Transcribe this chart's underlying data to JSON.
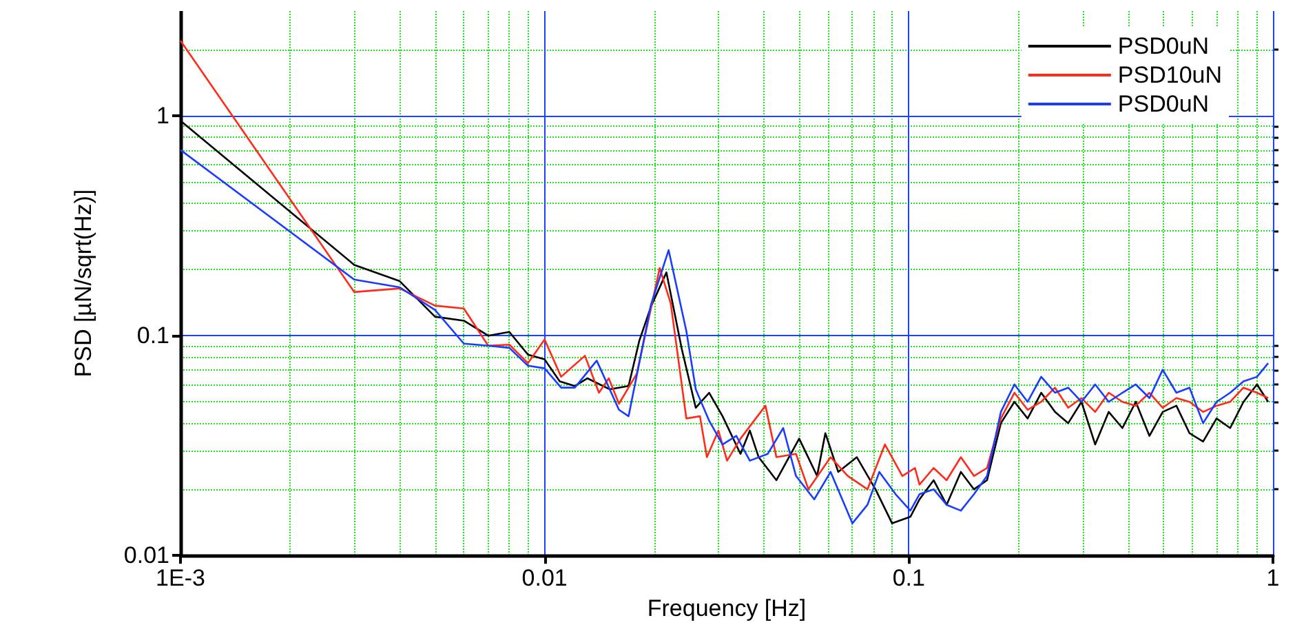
{
  "chart_data": {
    "type": "line",
    "xlabel": "Frequency [Hz]",
    "ylabel": "PSD [µN/sqrt(Hz)]",
    "log": "xy",
    "grid": true,
    "legend": "top right",
    "marker": "none",
    "line_style": "solid",
    "xlim": [
      0.001,
      1
    ],
    "ylim": [
      0.01,
      3
    ],
    "xticks": [
      {
        "value": 0.001,
        "label": "1E-3"
      },
      {
        "value": 0.002,
        "label": null
      },
      {
        "value": 0.003,
        "label": null
      },
      {
        "value": 0.004,
        "label": null
      },
      {
        "value": 0.005,
        "label": null
      },
      {
        "value": 0.006,
        "label": null
      },
      {
        "value": 0.007,
        "label": null
      },
      {
        "value": 0.008,
        "label": null
      },
      {
        "value": 0.009,
        "label": null
      },
      0.01,
      {
        "value": 0.02,
        "label": null
      },
      {
        "value": 0.03,
        "label": null
      },
      {
        "value": 0.04,
        "label": null
      },
      {
        "value": 0.05,
        "label": null
      },
      {
        "value": 0.06,
        "label": null
      },
      {
        "value": 0.07,
        "label": null
      },
      {
        "value": 0.08,
        "label": null
      },
      {
        "value": 0.09,
        "label": null
      },
      0.1,
      {
        "value": 0.2,
        "label": null
      },
      {
        "value": 0.3,
        "label": null
      },
      {
        "value": 0.4,
        "label": null
      },
      {
        "value": 0.5,
        "label": null
      },
      {
        "value": 0.6,
        "label": null
      },
      {
        "value": 0.7,
        "label": null
      },
      {
        "value": 0.8,
        "label": null
      },
      {
        "value": 0.9,
        "label": null
      },
      1
    ],
    "yticks": [
      0.01,
      {
        "value": 0.02,
        "label": null
      },
      {
        "value": 0.03,
        "label": null
      },
      {
        "value": 0.04,
        "label": null
      },
      {
        "value": 0.05,
        "label": null
      },
      {
        "value": 0.06,
        "label": null
      },
      {
        "value": 0.07,
        "label": null
      },
      {
        "value": 0.08,
        "label": null
      },
      {
        "value": 0.09,
        "label": null
      },
      0.1,
      {
        "value": 0.2,
        "label": null
      },
      {
        "value": 0.3,
        "label": null
      },
      {
        "value": 0.4,
        "label": null
      },
      {
        "value": 0.5,
        "label": null
      },
      {
        "value": 0.6,
        "label": null
      },
      {
        "value": 0.7,
        "label": null
      },
      {
        "value": 0.8,
        "label": null
      },
      {
        "value": 0.9,
        "label": null
      },
      1,
      {
        "value": 2,
        "label": null
      }
    ],
    "series": [
      {
        "name": "PSD0uN",
        "color": "#000000",
        "x": [
          0.001,
          0.003,
          0.004,
          0.005,
          0.006,
          0.007,
          0.008,
          0.009,
          0.01,
          0.011,
          0.0121,
          0.0131,
          0.0151,
          0.017,
          0.0182,
          0.0196,
          0.0216,
          0.0238,
          0.026,
          0.0283,
          0.0308,
          0.0345,
          0.0366,
          0.0387,
          0.0433,
          0.05,
          0.056,
          0.059,
          0.064,
          0.072,
          0.081,
          0.09,
          0.101,
          0.107,
          0.117,
          0.127,
          0.139,
          0.151,
          0.164,
          0.179,
          0.195,
          0.212,
          0.231,
          0.252,
          0.274,
          0.298,
          0.325,
          0.354,
          0.386,
          0.42,
          0.458,
          0.498,
          0.543,
          0.59,
          0.643,
          0.7,
          0.763,
          0.83,
          0.904,
          0.97
        ],
        "values": [
          0.95,
          0.21,
          0.177,
          0.122,
          0.117,
          0.1,
          0.104,
          0.082,
          0.078,
          0.062,
          0.059,
          0.064,
          0.057,
          0.059,
          0.095,
          0.136,
          0.194,
          0.087,
          0.047,
          0.055,
          0.043,
          0.029,
          0.037,
          0.028,
          0.022,
          0.034,
          0.023,
          0.036,
          0.024,
          0.028,
          0.02,
          0.014,
          0.015,
          0.018,
          0.022,
          0.017,
          0.024,
          0.02,
          0.022,
          0.04,
          0.05,
          0.042,
          0.055,
          0.045,
          0.04,
          0.05,
          0.032,
          0.045,
          0.038,
          0.05,
          0.035,
          0.045,
          0.048,
          0.036,
          0.033,
          0.042,
          0.038,
          0.05,
          0.06,
          0.05
        ]
      },
      {
        "name": "PSD10uN",
        "color": "#ff2a1a",
        "x": [
          0.001,
          0.003,
          0.004,
          0.005,
          0.006,
          0.007,
          0.008,
          0.009,
          0.01,
          0.0111,
          0.0129,
          0.0141,
          0.015,
          0.016,
          0.0179,
          0.0207,
          0.0222,
          0.0245,
          0.0267,
          0.0279,
          0.03,
          0.0317,
          0.0345,
          0.0404,
          0.0433,
          0.049,
          0.053,
          0.061,
          0.068,
          0.077,
          0.086,
          0.096,
          0.104,
          0.107,
          0.117,
          0.127,
          0.139,
          0.151,
          0.164,
          0.179,
          0.195,
          0.212,
          0.231,
          0.252,
          0.274,
          0.298,
          0.325,
          0.354,
          0.386,
          0.42,
          0.458,
          0.498,
          0.543,
          0.59,
          0.643,
          0.7,
          0.763,
          0.83,
          0.904,
          0.97
        ],
        "values": [
          2.2,
          0.158,
          0.164,
          0.137,
          0.133,
          0.09,
          0.091,
          0.075,
          0.096,
          0.065,
          0.081,
          0.055,
          0.064,
          0.049,
          0.067,
          0.203,
          0.14,
          0.042,
          0.043,
          0.028,
          0.037,
          0.027,
          0.034,
          0.048,
          0.028,
          0.029,
          0.02,
          0.028,
          0.023,
          0.02,
          0.032,
          0.023,
          0.025,
          0.021,
          0.025,
          0.022,
          0.028,
          0.023,
          0.025,
          0.042,
          0.055,
          0.046,
          0.05,
          0.058,
          0.047,
          0.052,
          0.045,
          0.055,
          0.05,
          0.048,
          0.055,
          0.047,
          0.052,
          0.05,
          0.045,
          0.048,
          0.05,
          0.058,
          0.055,
          0.052
        ]
      },
      {
        "name": "PSD0uN",
        "color": "#1a3cff",
        "x": [
          0.001,
          0.003,
          0.004,
          0.005,
          0.006,
          0.007,
          0.008,
          0.009,
          0.01,
          0.0111,
          0.0121,
          0.0139,
          0.016,
          0.017,
          0.0196,
          0.0219,
          0.0245,
          0.026,
          0.0283,
          0.0308,
          0.0336,
          0.0366,
          0.041,
          0.0452,
          0.049,
          0.055,
          0.061,
          0.07,
          0.077,
          0.083,
          0.092,
          0.101,
          0.107,
          0.117,
          0.127,
          0.139,
          0.151,
          0.164,
          0.179,
          0.195,
          0.212,
          0.231,
          0.252,
          0.274,
          0.298,
          0.325,
          0.354,
          0.386,
          0.42,
          0.458,
          0.498,
          0.543,
          0.59,
          0.643,
          0.7,
          0.763,
          0.83,
          0.904,
          0.97
        ],
        "values": [
          0.7,
          0.18,
          0.166,
          0.131,
          0.092,
          0.09,
          0.088,
          0.073,
          0.071,
          0.058,
          0.058,
          0.077,
          0.046,
          0.043,
          0.139,
          0.245,
          0.105,
          0.057,
          0.041,
          0.032,
          0.035,
          0.027,
          0.029,
          0.038,
          0.023,
          0.018,
          0.024,
          0.014,
          0.017,
          0.024,
          0.019,
          0.016,
          0.019,
          0.02,
          0.017,
          0.016,
          0.019,
          0.023,
          0.045,
          0.06,
          0.05,
          0.065,
          0.055,
          0.058,
          0.05,
          0.06,
          0.05,
          0.055,
          0.06,
          0.052,
          0.07,
          0.055,
          0.058,
          0.04,
          0.05,
          0.055,
          0.062,
          0.065,
          0.075
        ]
      }
    ]
  }
}
